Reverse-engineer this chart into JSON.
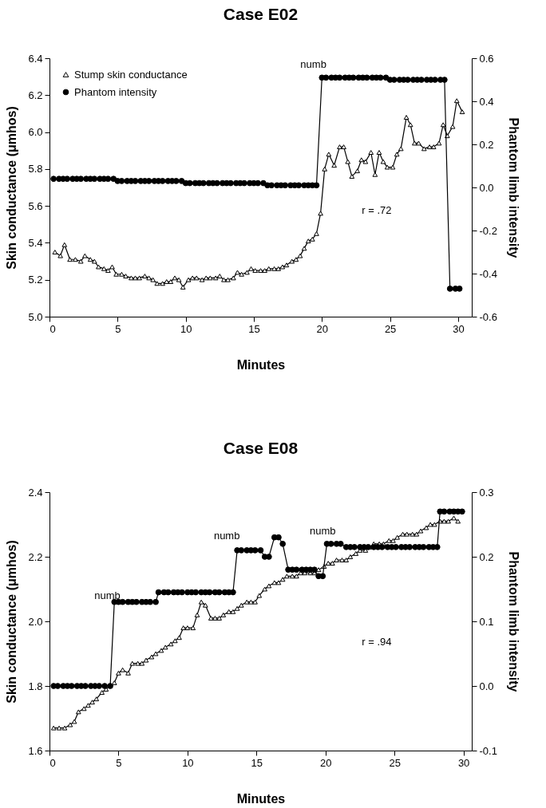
{
  "chart_data": [
    {
      "type": "line",
      "title": "Case  E02",
      "xlabel": "Minutes",
      "ylabel": "Skin conductance (μmhos)",
      "y2label": "Phantom limb intensity",
      "legend": "top left",
      "xlim": [
        0,
        31
      ],
      "xticks": [
        0,
        5,
        10,
        15,
        20,
        25,
        30
      ],
      "ylim": [
        5.0,
        6.4
      ],
      "yticks": [
        {
          "value": 5.0,
          "label": "5.0"
        },
        5.2,
        5.4,
        5.6,
        5.8,
        {
          "value": 6.0,
          "label": "6.0"
        },
        6.2,
        6.4
      ],
      "y2lim": [
        -0.6,
        0.6
      ],
      "y2ticks": [
        -0.6,
        -0.4,
        -0.2,
        {
          "value": 0.0,
          "label": "0.0"
        },
        0.2,
        0.4,
        0.6
      ],
      "annotations": [
        "numb",
        "r = .72"
      ],
      "series": [
        {
          "name": "Stump skin conductance",
          "color": "#000000",
          "marker": "triangle",
          "x": [
            0.4,
            0.8,
            1.1,
            1.5,
            1.9,
            2.3,
            2.6,
            3.0,
            3.3,
            3.6,
            4.0,
            4.3,
            4.6,
            4.9,
            5.3,
            5.6,
            6.0,
            6.3,
            6.6,
            7.0,
            7.3,
            7.6,
            7.9,
            8.3,
            8.6,
            8.9,
            9.2,
            9.5,
            9.8,
            10.2,
            10.5,
            10.8,
            11.2,
            11.5,
            11.8,
            12.2,
            12.5,
            12.8,
            13.1,
            13.5,
            13.8,
            14.1,
            14.5,
            14.8,
            15.1,
            15.5,
            15.8,
            16.1,
            16.5,
            16.8,
            17.1,
            17.4,
            17.8,
            18.1,
            18.4,
            18.7,
            19.0,
            19.3,
            19.6,
            19.9,
            20.2,
            20.5,
            20.9,
            21.3,
            21.6,
            21.9,
            22.2,
            22.6,
            22.9,
            23.2,
            23.6,
            23.9,
            24.2,
            24.5,
            24.8,
            25.2,
            25.5,
            25.8,
            26.2,
            26.5,
            26.8,
            27.1,
            27.5,
            27.9,
            28.2,
            28.6,
            28.9,
            29.2,
            29.6,
            29.9,
            30.3
          ],
          "values": [
            5.35,
            5.33,
            5.39,
            5.31,
            5.31,
            5.3,
            5.33,
            5.31,
            5.3,
            5.27,
            5.26,
            5.25,
            5.27,
            5.23,
            5.23,
            5.22,
            5.21,
            5.21,
            5.21,
            5.22,
            5.21,
            5.2,
            5.18,
            5.18,
            5.19,
            5.19,
            5.21,
            5.2,
            5.16,
            5.2,
            5.21,
            5.21,
            5.2,
            5.21,
            5.21,
            5.21,
            5.22,
            5.2,
            5.2,
            5.21,
            5.24,
            5.23,
            5.24,
            5.26,
            5.25,
            5.25,
            5.25,
            5.26,
            5.26,
            5.26,
            5.27,
            5.28,
            5.3,
            5.31,
            5.33,
            5.37,
            5.41,
            5.42,
            5.45,
            5.56,
            5.8,
            5.88,
            5.82,
            5.92,
            5.92,
            5.84,
            5.76,
            5.79,
            5.85,
            5.84,
            5.89,
            5.77,
            5.89,
            5.84,
            5.81,
            5.81,
            5.88,
            5.91,
            6.08,
            6.04,
            5.94,
            5.94,
            5.91,
            5.92,
            5.92,
            5.94,
            6.04,
            5.98,
            6.03,
            6.17,
            6.11
          ]
        },
        {
          "name": "Phantom intensity",
          "color": "#000000",
          "marker": "circle",
          "axis": "y2",
          "x": [
            0.3,
            0.7,
            1.0,
            1.3,
            1.7,
            2.0,
            2.3,
            2.7,
            3.0,
            3.3,
            3.7,
            4.0,
            4.3,
            4.7,
            5.0,
            5.3,
            5.7,
            6.0,
            6.3,
            6.7,
            7.0,
            7.3,
            7.7,
            8.0,
            8.3,
            8.7,
            9.0,
            9.3,
            9.7,
            10.0,
            10.3,
            10.7,
            11.0,
            11.3,
            11.7,
            12.0,
            12.3,
            12.7,
            13.0,
            13.3,
            13.7,
            14.0,
            14.3,
            14.7,
            15.0,
            15.3,
            15.7,
            16.0,
            16.3,
            16.7,
            17.0,
            17.3,
            17.7,
            18.0,
            18.3,
            18.7,
            19.0,
            19.3,
            19.6,
            20.0,
            20.3,
            20.7,
            21.0,
            21.3,
            21.7,
            22.0,
            22.3,
            22.7,
            23.0,
            23.3,
            23.7,
            24.0,
            24.3,
            24.7,
            25.0,
            25.3,
            25.7,
            26.0,
            26.3,
            26.7,
            27.0,
            27.3,
            27.7,
            28.0,
            28.3,
            28.7,
            29.0,
            29.4,
            29.8,
            30.1
          ],
          "values": [
            0.04,
            0.04,
            0.04,
            0.04,
            0.04,
            0.04,
            0.04,
            0.04,
            0.04,
            0.04,
            0.04,
            0.04,
            0.04,
            0.04,
            0.03,
            0.03,
            0.03,
            0.03,
            0.03,
            0.03,
            0.03,
            0.03,
            0.03,
            0.03,
            0.03,
            0.03,
            0.03,
            0.03,
            0.03,
            0.02,
            0.02,
            0.02,
            0.02,
            0.02,
            0.02,
            0.02,
            0.02,
            0.02,
            0.02,
            0.02,
            0.02,
            0.02,
            0.02,
            0.02,
            0.02,
            0.02,
            0.02,
            0.01,
            0.01,
            0.01,
            0.01,
            0.01,
            0.01,
            0.01,
            0.01,
            0.01,
            0.01,
            0.01,
            0.01,
            0.51,
            0.51,
            0.51,
            0.51,
            0.51,
            0.51,
            0.51,
            0.51,
            0.51,
            0.51,
            0.51,
            0.51,
            0.51,
            0.51,
            0.51,
            0.5,
            0.5,
            0.5,
            0.5,
            0.5,
            0.5,
            0.5,
            0.5,
            0.5,
            0.5,
            0.5,
            0.5,
            0.5,
            -0.47,
            -0.47,
            -0.47
          ]
        }
      ]
    },
    {
      "type": "line",
      "title": "Case  E08",
      "xlabel": "Minutes",
      "ylabel": "Skin conductance (μmhos)",
      "y2label": "Phantom limb intensity",
      "xlim": [
        0,
        30.6
      ],
      "xticks": [
        0,
        5,
        10,
        15,
        20,
        25,
        30
      ],
      "ylim": [
        1.6,
        2.4
      ],
      "yticks": [
        1.6,
        1.8,
        {
          "value": 2.0,
          "label": "2.0"
        },
        2.2,
        2.4
      ],
      "y2lim": [
        -0.1,
        0.3
      ],
      "y2ticks": [
        -0.1,
        {
          "value": 0.0,
          "label": "0.0"
        },
        0.1,
        0.2,
        0.3
      ],
      "annotations": [
        "numb",
        "numb",
        "numb",
        "r = .94"
      ],
      "series": [
        {
          "color": "#000000",
          "marker": "triangle",
          "x": [
            0.3,
            0.7,
            1.1,
            1.5,
            1.8,
            2.1,
            2.5,
            2.8,
            3.1,
            3.4,
            3.8,
            4.1,
            4.4,
            4.7,
            5.0,
            5.3,
            5.7,
            6.0,
            6.4,
            6.7,
            7.0,
            7.4,
            7.7,
            8.1,
            8.4,
            8.8,
            9.1,
            9.4,
            9.7,
            10.0,
            10.4,
            10.7,
            11.0,
            11.3,
            11.7,
            12.0,
            12.3,
            12.6,
            13.0,
            13.3,
            13.6,
            13.9,
            14.3,
            14.6,
            14.9,
            15.2,
            15.6,
            15.9,
            16.3,
            16.6,
            16.9,
            17.2,
            17.6,
            17.9,
            18.2,
            18.5,
            18.9,
            19.2,
            19.5,
            19.9,
            20.2,
            20.5,
            20.8,
            21.2,
            21.5,
            21.8,
            22.2,
            22.5,
            22.9,
            23.2,
            23.5,
            23.9,
            24.2,
            24.6,
            24.9,
            25.2,
            25.6,
            25.9,
            26.3,
            26.6,
            26.9,
            27.3,
            27.6,
            27.9,
            28.3,
            28.6,
            28.9,
            29.3,
            29.6
          ],
          "values": [
            1.67,
            1.67,
            1.67,
            1.68,
            1.69,
            1.72,
            1.73,
            1.74,
            1.75,
            1.76,
            1.78,
            1.79,
            1.8,
            1.81,
            1.84,
            1.85,
            1.84,
            1.87,
            1.87,
            1.87,
            1.88,
            1.89,
            1.9,
            1.91,
            1.92,
            1.93,
            1.94,
            1.95,
            1.98,
            1.98,
            1.98,
            2.02,
            2.06,
            2.05,
            2.01,
            2.01,
            2.01,
            2.02,
            2.03,
            2.03,
            2.04,
            2.05,
            2.06,
            2.06,
            2.06,
            2.08,
            2.1,
            2.11,
            2.12,
            2.12,
            2.13,
            2.14,
            2.14,
            2.14,
            2.15,
            2.15,
            2.15,
            2.15,
            2.16,
            2.17,
            2.18,
            2.18,
            2.19,
            2.19,
            2.19,
            2.2,
            2.21,
            2.22,
            2.22,
            2.23,
            2.24,
            2.24,
            2.24,
            2.25,
            2.25,
            2.26,
            2.27,
            2.27,
            2.27,
            2.27,
            2.28,
            2.29,
            2.3,
            2.3,
            2.31,
            2.31,
            2.31,
            2.32,
            2.31
          ]
        },
        {
          "color": "#000000",
          "marker": "circle",
          "axis": "y2",
          "x": [
            0.3,
            0.6,
            1.0,
            1.3,
            1.6,
            2.0,
            2.3,
            2.6,
            3.0,
            3.3,
            3.6,
            4.0,
            4.4,
            4.7,
            5.0,
            5.3,
            5.7,
            6.0,
            6.3,
            6.7,
            7.0,
            7.3,
            7.7,
            7.9,
            8.3,
            8.6,
            9.0,
            9.3,
            9.6,
            10.0,
            10.3,
            10.6,
            11.0,
            11.3,
            11.6,
            12.0,
            12.3,
            12.7,
            13.0,
            13.3,
            13.6,
            13.9,
            14.3,
            14.6,
            14.9,
            15.3,
            15.6,
            15.9,
            16.3,
            16.6,
            16.9,
            17.3,
            17.6,
            17.9,
            18.3,
            18.6,
            18.9,
            19.2,
            19.5,
            19.8,
            20.1,
            20.4,
            20.8,
            21.1,
            21.5,
            21.8,
            22.1,
            22.5,
            22.8,
            23.1,
            23.5,
            23.8,
            24.1,
            24.5,
            24.8,
            25.1,
            25.5,
            25.8,
            26.1,
            26.5,
            26.8,
            27.1,
            27.5,
            27.8,
            28.1,
            28.3,
            28.6,
            29.0,
            29.3,
            29.6,
            29.9
          ],
          "values": [
            0.0,
            0.0,
            0.0,
            0.0,
            0.0,
            0.0,
            0.0,
            0.0,
            0.0,
            0.0,
            0.0,
            0.0,
            0.0,
            0.13,
            0.13,
            0.13,
            0.13,
            0.13,
            0.13,
            0.13,
            0.13,
            0.13,
            0.13,
            0.145,
            0.145,
            0.145,
            0.145,
            0.145,
            0.145,
            0.145,
            0.145,
            0.145,
            0.145,
            0.145,
            0.145,
            0.145,
            0.145,
            0.145,
            0.145,
            0.145,
            0.21,
            0.21,
            0.21,
            0.21,
            0.21,
            0.21,
            0.2,
            0.2,
            0.23,
            0.23,
            0.22,
            0.18,
            0.18,
            0.18,
            0.18,
            0.18,
            0.18,
            0.18,
            0.17,
            0.17,
            0.22,
            0.22,
            0.22,
            0.22,
            0.215,
            0.215,
            0.215,
            0.215,
            0.215,
            0.215,
            0.215,
            0.215,
            0.215,
            0.215,
            0.215,
            0.215,
            0.215,
            0.215,
            0.215,
            0.215,
            0.215,
            0.215,
            0.215,
            0.215,
            0.215,
            0.27,
            0.27,
            0.27,
            0.27,
            0.27,
            0.27
          ]
        }
      ]
    }
  ]
}
